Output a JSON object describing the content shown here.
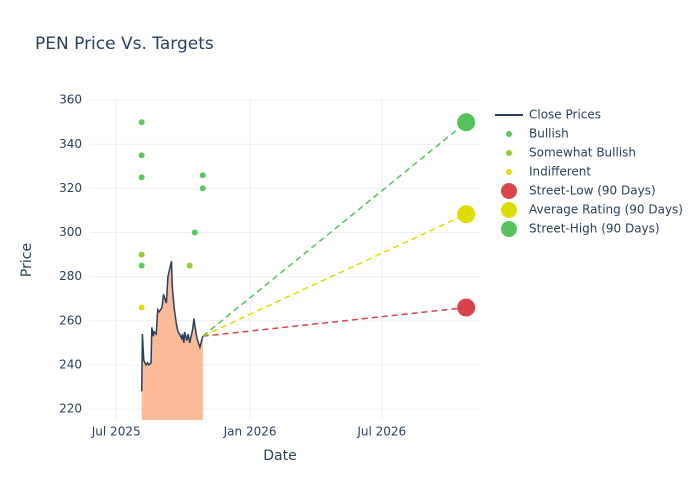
{
  "chart_data": {
    "type": "line",
    "title": "PEN Price Vs. Targets",
    "x_label": "Date",
    "y_label": "Price",
    "xlim": [
      "2025-05-26",
      "2026-11-13"
    ],
    "xticks": [
      {
        "value": "2025-07-01",
        "label": "Jul 2025"
      },
      {
        "value": "2026-01-01",
        "label": "Jan 2026"
      },
      {
        "value": "2026-07-01",
        "label": "Jul 2026"
      }
    ],
    "ylim": [
      215,
      361
    ],
    "yticks": [
      220,
      240,
      260,
      280,
      300,
      320,
      340,
      360
    ],
    "grid": true,
    "legend": "right",
    "series": [
      {
        "name": "Close Prices",
        "mode": "line",
        "color": "#2a3f5f",
        "area_color": "#fbbb97",
        "x": [
          "2025-08-05",
          "2025-08-06",
          "2025-08-08",
          "2025-08-11",
          "2025-08-13",
          "2025-08-15",
          "2025-08-18",
          "2025-08-19",
          "2025-08-21",
          "2025-08-22",
          "2025-08-25",
          "2025-08-27",
          "2025-08-29",
          "2025-09-02",
          "2025-09-04",
          "2025-09-05",
          "2025-09-08",
          "2025-09-10",
          "2025-09-15",
          "2025-09-16",
          "2025-09-17",
          "2025-09-19",
          "2025-09-22",
          "2025-09-24",
          "2025-09-26",
          "2025-09-29",
          "2025-09-30",
          "2025-10-02",
          "2025-10-03",
          "2025-10-06",
          "2025-10-08",
          "2025-10-10",
          "2025-10-14",
          "2025-10-16",
          "2025-10-17",
          "2025-10-20",
          "2025-10-22",
          "2025-10-24",
          "2025-10-28"
        ],
        "values": [
          228,
          254,
          242,
          240,
          241,
          240,
          241,
          257,
          253,
          255,
          254,
          265,
          264,
          266,
          272,
          271,
          268,
          280,
          287,
          276,
          272,
          265,
          258,
          255,
          254,
          252,
          254,
          250,
          255,
          251,
          254,
          250,
          256,
          261,
          258,
          252,
          250,
          248,
          253
        ]
      },
      {
        "name": "Bullish",
        "mode": "markers",
        "color": "#5cc85c",
        "x": [
          "2025-08-05",
          "2025-08-05",
          "2025-08-05",
          "2025-08-05",
          "2025-10-17",
          "2025-10-28",
          "2025-10-28"
        ],
        "values": [
          350,
          335,
          325,
          285,
          300,
          326,
          320
        ]
      },
      {
        "name": "Somewhat Bullish",
        "mode": "markers",
        "color": "#9acd32",
        "x": [
          "2025-08-05",
          "2025-10-10"
        ],
        "values": [
          290,
          285
        ]
      },
      {
        "name": "Indifferent",
        "mode": "markers",
        "color": "#e0dc10",
        "x": [
          "2025-08-05"
        ],
        "values": [
          266
        ]
      },
      {
        "name": "Street-Low (90 Days)",
        "mode": "target",
        "color": "#d9444c",
        "x": [
          "2026-10-25"
        ],
        "values": [
          266
        ]
      },
      {
        "name": "Average Rating (90 Days)",
        "mode": "target",
        "color": "#dddd00",
        "x": [
          "2026-10-25"
        ],
        "values": [
          308.3
        ]
      },
      {
        "name": "Street-High (90 Days)",
        "mode": "target",
        "color": "#55c35c",
        "x": [
          "2026-10-25"
        ],
        "values": [
          350
        ]
      }
    ]
  }
}
